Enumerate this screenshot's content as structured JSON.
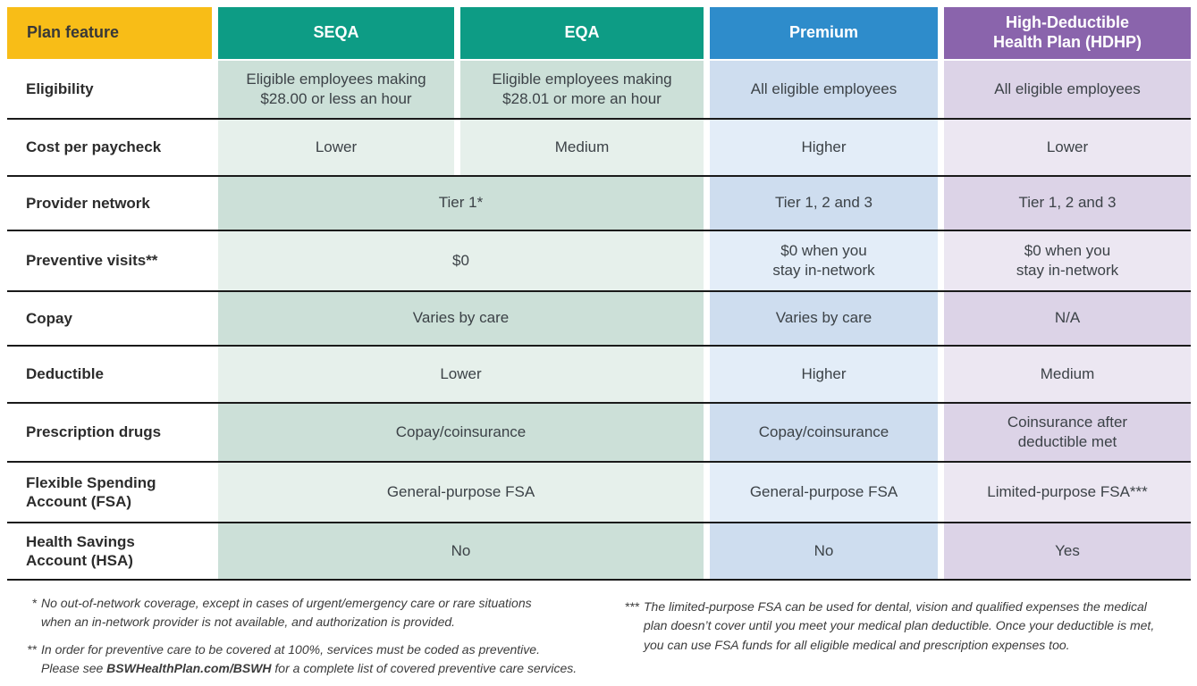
{
  "colors": {
    "header_yellow": "#F8BD17",
    "header_teal": "#0D9C85",
    "header_blue": "#2E8CCB",
    "header_purple": "#8A64AC",
    "green_row_dark": "#CCE0D8",
    "green_row_light": "#E6F0EB",
    "blue_row_dark": "#CEDDEF",
    "blue_row_light": "#E3EDF8",
    "purple_row_dark": "#DCD3E7",
    "purple_row_light": "#ECE7F2",
    "divider_line": "#1A1A1A",
    "header_text_light": "#FFFFFF",
    "header_text_dark": "#383838"
  },
  "header": {
    "feature": "Plan feature",
    "seqa": "SEQA",
    "eqa": "EQA",
    "premium": "Premium",
    "hdhp": "High-Deductible\nHealth Plan (HDHP)"
  },
  "rows": [
    {
      "label": "Eligibility",
      "seqa": "Eligible employees making\n$28.00 or less an hour",
      "eqa": "Eligible employees making\n$28.01 or more an hour",
      "premium": "All eligible employees",
      "hdhp": "All eligible employees"
    },
    {
      "label": "Cost per paycheck",
      "seqa": "Lower",
      "eqa": "Medium",
      "premium": "Higher",
      "hdhp": "Lower"
    },
    {
      "label": "Provider network",
      "seqa_eqa": "Tier 1*",
      "premium": "Tier 1, 2 and 3",
      "hdhp": "Tier 1, 2 and 3"
    },
    {
      "label": "Preventive visits**",
      "seqa_eqa": "$0",
      "premium": "$0 when you\nstay in-network",
      "hdhp": "$0 when you\nstay in-network"
    },
    {
      "label": "Copay",
      "seqa_eqa": "Varies by care",
      "premium": "Varies by care",
      "hdhp": "N/A"
    },
    {
      "label": "Deductible",
      "seqa_eqa": "Lower",
      "premium": "Higher",
      "hdhp": "Medium"
    },
    {
      "label": "Prescription drugs",
      "seqa_eqa": "Copay/coinsurance",
      "premium": "Copay/coinsurance",
      "hdhp": "Coinsurance after\ndeductible met"
    },
    {
      "label": "Flexible Spending\nAccount (FSA)",
      "seqa_eqa": "General-purpose FSA",
      "premium": "General-purpose FSA",
      "hdhp": "Limited-purpose FSA***"
    },
    {
      "label": "Health Savings\nAccount (HSA)",
      "seqa_eqa": "No",
      "premium": "No",
      "hdhp": "Yes"
    }
  ],
  "footnotes": {
    "fn1_marker": "*",
    "fn1_text": "No out-of-network coverage, except in cases of urgent/emergency care or rare situations\nwhen an in-network provider is not available, and authorization is provided.",
    "fn2_marker": "**",
    "fn2_pre": "In order for preventive care to be covered at 100%, services must be coded as preventive.\nPlease see ",
    "fn2_bold": "BSWHealthPlan.com/BSWH",
    "fn2_post": " for a complete list of covered preventive care services.",
    "fn3_marker": "***",
    "fn3_text": "The limited-purpose FSA can be used for dental, vision and qualified expenses the medical\nplan doesn’t cover until you meet your medical plan deductible. Once your deductible is met,\nyou can use FSA funds for all eligible medical and prescription expenses too."
  }
}
